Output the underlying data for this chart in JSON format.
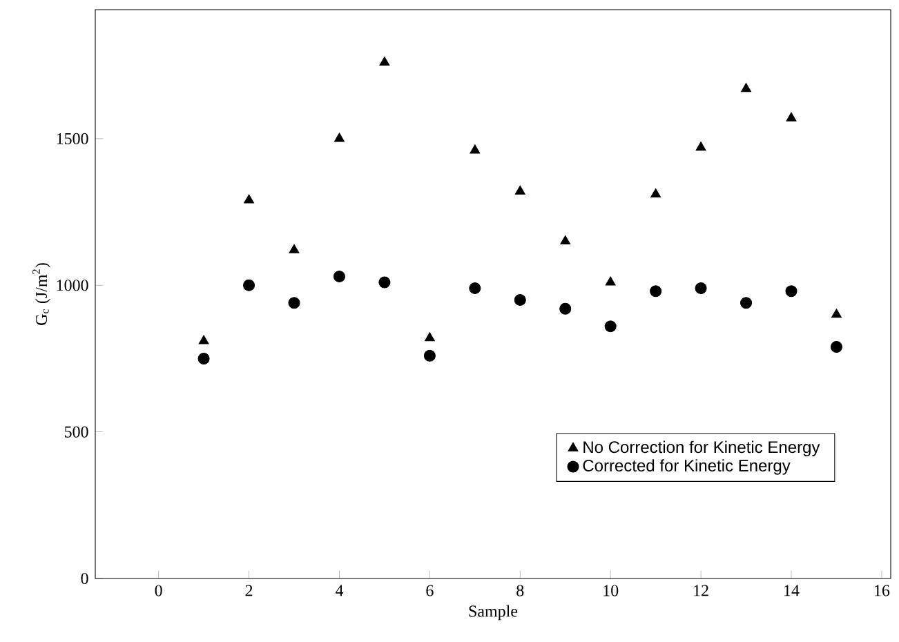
{
  "chart_data": {
    "type": "scatter",
    "xlabel": "Sample",
    "ylabel": "G$_{c}$ (J/m$^{2}$)",
    "x": [
      1,
      2,
      3,
      4,
      5,
      6,
      7,
      8,
      9,
      10,
      11,
      12,
      13,
      14,
      15
    ],
    "series": [
      {
        "name": "No Correction for Kinetic Energy",
        "color": "#000000",
        "marker": "triangle",
        "values": [
          810,
          1290,
          1120,
          1500,
          1760,
          820,
          1460,
          1320,
          1150,
          1010,
          1310,
          1470,
          1670,
          1570,
          900
        ]
      },
      {
        "name": "Corrected for Kinetic Energy",
        "color": "#000000",
        "marker": "circle",
        "values": [
          750,
          1000,
          940,
          1030,
          1010,
          760,
          990,
          950,
          920,
          860,
          980,
          990,
          940,
          980,
          790
        ]
      }
    ],
    "xlim": [
      -1.4,
      16.2
    ],
    "ylim": [
      0,
      1940
    ],
    "xticks": [
      0,
      2,
      4,
      6,
      8,
      10,
      12,
      14,
      16
    ],
    "yticks": [
      0,
      500,
      1000,
      1500
    ],
    "grid": false,
    "legend": "bottom right"
  }
}
